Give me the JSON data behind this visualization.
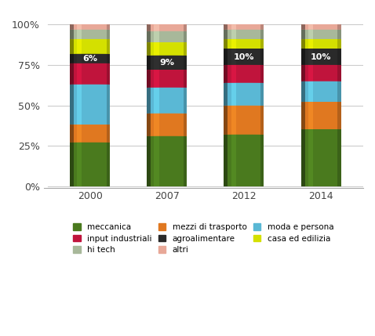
{
  "years": [
    "2000",
    "2007",
    "2012",
    "2014"
  ],
  "categories": [
    "meccanica",
    "mezzi di trasporto",
    "moda e persona",
    "input industriali",
    "agroalimentare",
    "casa ed edilizia",
    "hi tech",
    "altri"
  ],
  "colors": [
    "#4a7a1e",
    "#e07820",
    "#5ab8d5",
    "#c0143c",
    "#2a2a2a",
    "#d4e000",
    "#a8b89a",
    "#e8a898"
  ],
  "data": {
    "meccanica": [
      27,
      31,
      32,
      35
    ],
    "mezzi di trasporto": [
      11,
      14,
      18,
      17
    ],
    "moda e persona": [
      25,
      16,
      14,
      13
    ],
    "input industriali": [
      13,
      11,
      11,
      10
    ],
    "agroalimentare": [
      6,
      9,
      10,
      10
    ],
    "casa ed edilizia": [
      9,
      8,
      6,
      6
    ],
    "hi tech": [
      6,
      7,
      6,
      6
    ],
    "altri": [
      3,
      4,
      3,
      3
    ]
  },
  "agro_labels": [
    "6%",
    "9%",
    "10%",
    "10%"
  ],
  "background_color": "#ffffff",
  "grid_color": "#cccccc",
  "yticks": [
    0,
    25,
    50,
    75,
    100
  ],
  "ylabels": [
    "0%",
    "25%",
    "50%",
    "75%",
    "100%"
  ],
  "legend_order": [
    "meccanica",
    "input industriali",
    "hi tech",
    "mezzi di trasporto",
    "agroalimentare",
    "altri",
    "moda e persona",
    "casa ed edilizia"
  ]
}
